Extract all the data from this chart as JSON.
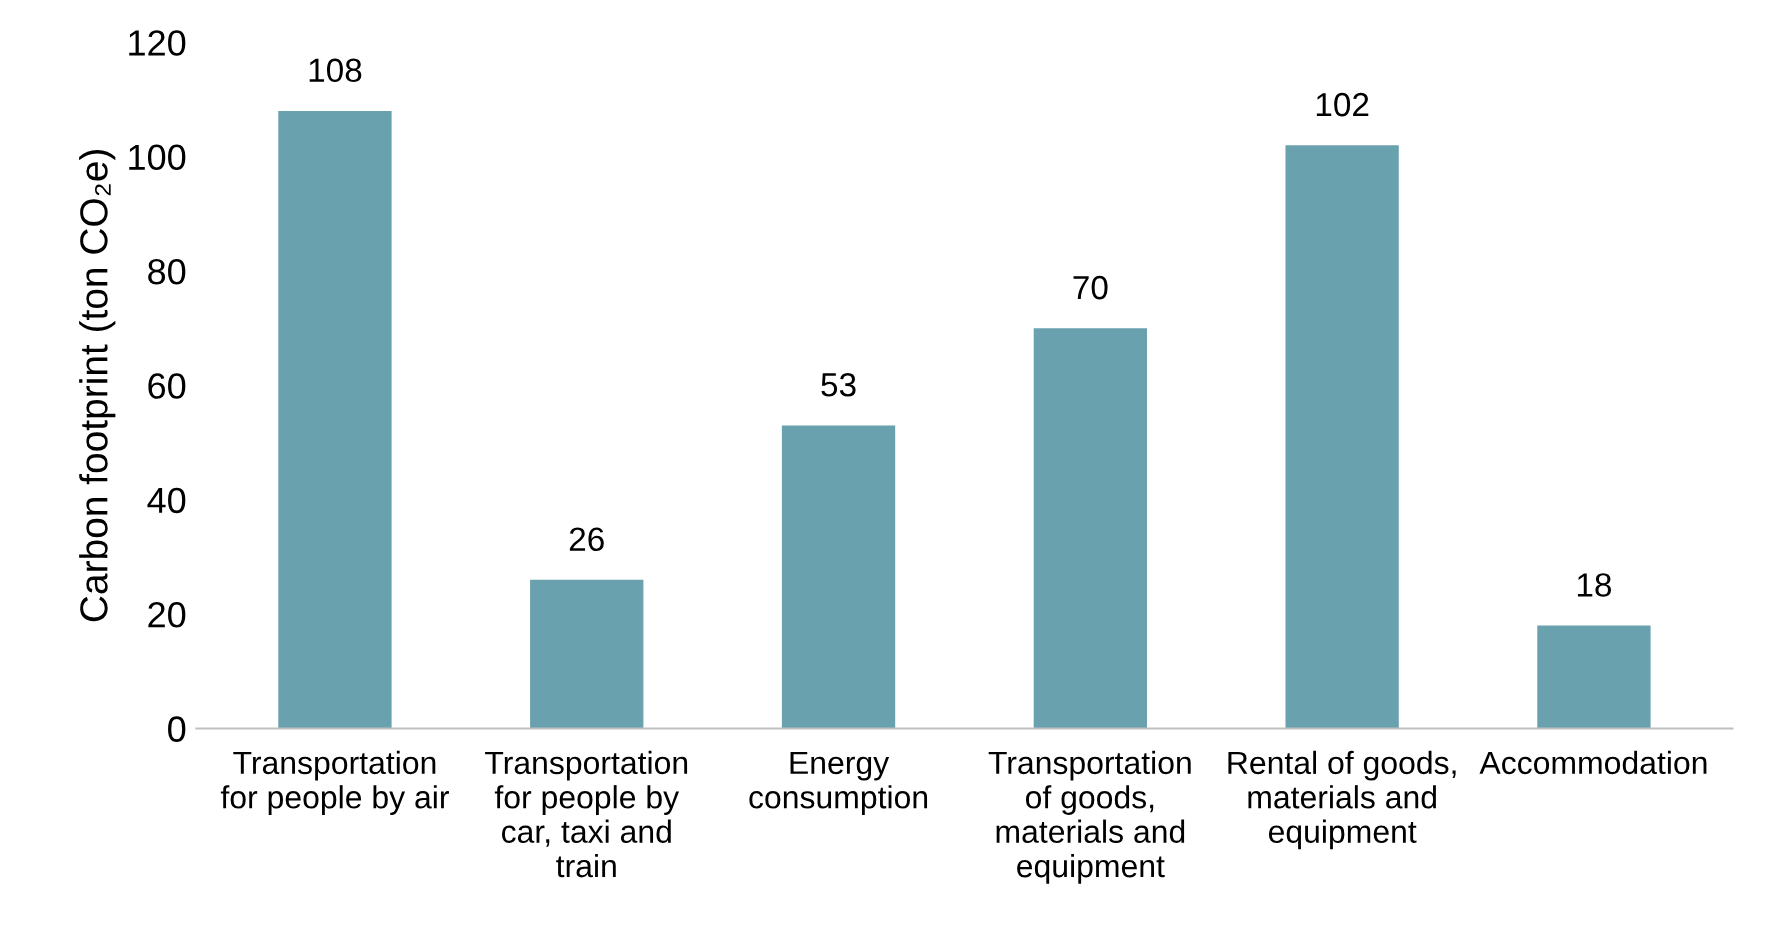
{
  "chart_data": {
    "type": "bar",
    "ylabel": "Carbon footprint (ton CO₂e)",
    "categories": [
      "Transportation\nfor people by air",
      "Transportation\nfor people by\ncar, taxi and\ntrain",
      "Energy\nconsumption",
      "Transportation\nof goods,\nmaterials and\nequipment",
      "Rental of goods,\nmaterials and\nequipment",
      "Accommodation"
    ],
    "values": [
      108,
      26,
      53,
      70,
      102,
      18
    ],
    "color": "#6aa1ae",
    "ylim": [
      0,
      120
    ],
    "yticks": [
      0,
      20,
      40,
      60,
      80,
      100,
      120
    ],
    "grid": false,
    "data_labels": true
  }
}
